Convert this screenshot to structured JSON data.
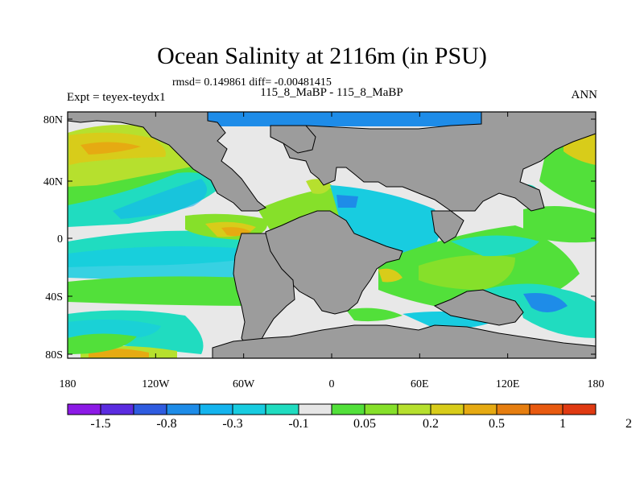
{
  "title": "Ocean Salinity at 2116m (in PSU)",
  "stats": "rmsd= 0.149861 diff= -0.00481415",
  "left_string": "Expt = teyex-teydx1",
  "center_string": "115_8_MaBP - 115_8_MaBP",
  "right_string": "ANN",
  "colors": {
    "land": "#9c9c9c",
    "neutral": "#e8e8e8",
    "palette": [
      "#8c1ae6",
      "#5b2ce0",
      "#2f5ce0",
      "#1e8ce8",
      "#14b4ee",
      "#18cce0",
      "#20dcc0",
      "#e6e6e6",
      "#52e03a",
      "#86e02a",
      "#b6e02e",
      "#d8cc1a",
      "#e6aa12",
      "#e67e10",
      "#e85a10",
      "#e03a12"
    ]
  },
  "lat_labels": [
    "80N",
    "40N",
    "0",
    "40S",
    "80S"
  ],
  "lon_labels": [
    "180",
    "120W",
    "60W",
    "0",
    "60E",
    "120E",
    "180"
  ],
  "colorbar_labels": [
    "-1.5",
    "-0.8",
    "-0.3",
    "-0.1",
    "0.05",
    "0.2",
    "0.5",
    "1",
    "2"
  ]
}
